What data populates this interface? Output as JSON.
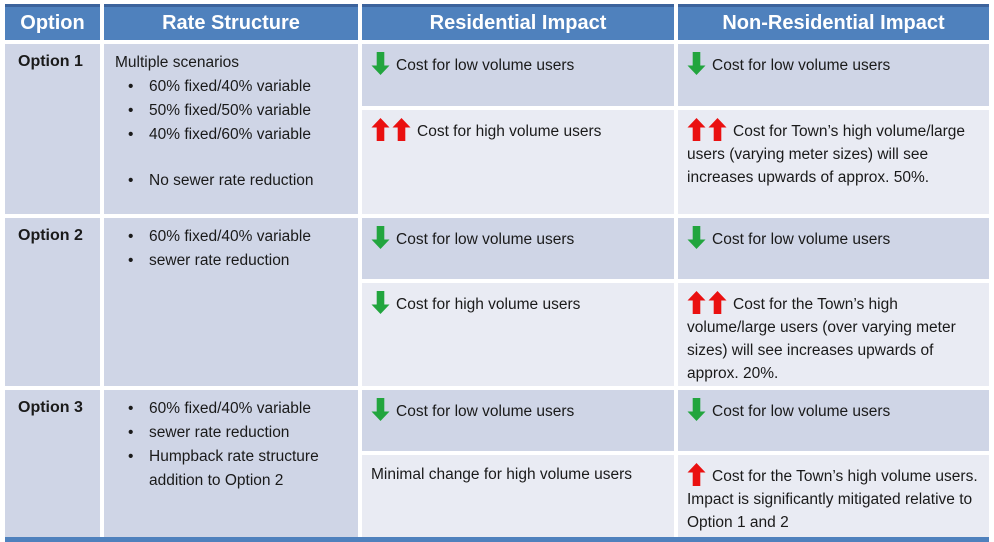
{
  "header": {
    "columns": [
      "Option",
      "Rate Structure",
      "Residential Impact",
      "Non-Residential Impact"
    ]
  },
  "bullet_char": "•",
  "colors": {
    "header_bg": "#4f81bd",
    "header_top_accent": "#3c639c",
    "band_dark": "#cfd5e6",
    "band_light": "#e9ebf3",
    "arrow_up_red": "#ea1010",
    "arrow_down_green": "#22a53e",
    "bottom_bar": "#4f81bd"
  },
  "rows": [
    {
      "option": "Option 1",
      "rate_structure": [
        {
          "bullet": false,
          "text": "Multiple scenarios"
        },
        {
          "bullet": true,
          "text": "60% fixed/40% variable"
        },
        {
          "bullet": true,
          "text": "50% fixed/50% variable"
        },
        {
          "bullet": true,
          "text": "40% fixed/60% variable"
        },
        {
          "bullet": false,
          "text": ""
        },
        {
          "bullet": true,
          "text": "No sewer rate reduction"
        }
      ],
      "residential": [
        {
          "arrow_dir": "down",
          "arrow_count": 1,
          "text": "Cost for low volume users"
        },
        {
          "arrow_dir": "up",
          "arrow_count": 2,
          "text": "Cost for high volume users"
        }
      ],
      "non_residential": [
        {
          "arrow_dir": "down",
          "arrow_count": 1,
          "text": "Cost for low volume users"
        },
        {
          "arrow_dir": "up",
          "arrow_count": 2,
          "text": "Cost for Town’s high volume/large users (varying meter sizes) will see increases upwards of approx. 50%."
        }
      ]
    },
    {
      "option": "Option 2",
      "rate_structure": [
        {
          "bullet": true,
          "text": "60% fixed/40% variable"
        },
        {
          "bullet": true,
          "text": "sewer rate reduction"
        }
      ],
      "residential": [
        {
          "arrow_dir": "down",
          "arrow_count": 1,
          "text": "Cost for low volume users"
        },
        {
          "arrow_dir": "down",
          "arrow_count": 1,
          "text": "Cost for high volume users"
        }
      ],
      "non_residential": [
        {
          "arrow_dir": "down",
          "arrow_count": 1,
          "text": "Cost for low volume users"
        },
        {
          "arrow_dir": "up",
          "arrow_count": 2,
          "text": "Cost for the Town’s high volume/large users (over varying meter sizes) will see increases upwards of approx. 20%."
        }
      ]
    },
    {
      "option": "Option 3",
      "rate_structure": [
        {
          "bullet": true,
          "text": "60% fixed/40% variable"
        },
        {
          "bullet": true,
          "text": "sewer rate reduction"
        },
        {
          "bullet": true,
          "text": "Humpback rate structure addition to Option 2"
        }
      ],
      "residential": [
        {
          "arrow_dir": "down",
          "arrow_count": 1,
          "text": "Cost for low volume users"
        },
        {
          "arrow_dir": "none",
          "arrow_count": 0,
          "text": "Minimal change for high volume users"
        }
      ],
      "non_residential": [
        {
          "arrow_dir": "down",
          "arrow_count": 1,
          "text": "Cost for low volume users"
        },
        {
          "arrow_dir": "up",
          "arrow_count": 1,
          "text": "Cost for the Town’s high volume users. Impact is significantly mitigated relative to Option 1 and 2"
        }
      ]
    }
  ]
}
